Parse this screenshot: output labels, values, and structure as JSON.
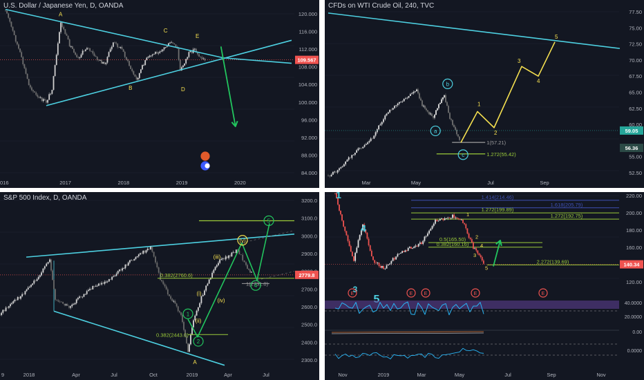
{
  "chart_data": [
    {
      "type": "line",
      "title": "U.S. Dollar / Japanese Yen, D, OANDA",
      "x_ticks": [
        "016",
        "2017",
        "2018",
        "2019",
        "2020"
      ],
      "y_ticks": [
        "120.000",
        "116.000",
        "112.000",
        "108.000",
        "104.000",
        "100.000",
        "96.000",
        "92.000",
        "88.000",
        "84.000"
      ],
      "ylim": [
        84,
        121.5
      ],
      "price_path": [
        [
          2016.0,
          121
        ],
        [
          2016.1,
          117
        ],
        [
          2016.25,
          111
        ],
        [
          2016.4,
          104
        ],
        [
          2016.55,
          101
        ],
        [
          2016.7,
          100
        ],
        [
          2016.8,
          103
        ],
        [
          2016.95,
          118
        ],
        [
          2017.1,
          113
        ],
        [
          2017.25,
          110
        ],
        [
          2017.4,
          112.5
        ],
        [
          2017.55,
          110
        ],
        [
          2017.7,
          108.5
        ],
        [
          2017.85,
          113.5
        ],
        [
          2018.0,
          112
        ],
        [
          2018.15,
          107.5
        ],
        [
          2018.25,
          105
        ],
        [
          2018.4,
          109.5
        ],
        [
          2018.55,
          111
        ],
        [
          2018.7,
          112
        ],
        [
          2018.85,
          113.5
        ],
        [
          2018.95,
          112
        ],
        [
          2019.0,
          107
        ],
        [
          2019.15,
          111
        ],
        [
          2019.25,
          112
        ],
        [
          2019.35,
          110
        ],
        [
          2019.45,
          109.5
        ]
      ],
      "current_price": "109.567",
      "last_label": "109.567",
      "wave_labels": [
        "A",
        "B",
        "C",
        "D",
        "E"
      ],
      "projection": "downward arrow toward 96",
      "colors": {
        "trendline": "#4dd0e1",
        "projection": "#22c55e",
        "labels": "#f5e050",
        "price": "#c8c8c8",
        "last_price": "#ef5350"
      }
    },
    {
      "type": "line",
      "title": "CFDs on WTI Crude Oil, 240, TVC",
      "x_ticks": [
        "Mar",
        "May",
        "Jul",
        "Sep"
      ],
      "y_ticks": [
        "77.50",
        "75.00",
        "72.50",
        "70.00",
        "67.50",
        "65.00",
        "62.50",
        "60.00",
        "55.00",
        "52.50"
      ],
      "ylim": [
        51.5,
        78.5
      ],
      "price_path": [
        [
          0,
          52
        ],
        [
          0.1,
          53
        ],
        [
          0.2,
          55
        ],
        [
          0.3,
          56.5
        ],
        [
          0.4,
          58
        ],
        [
          0.5,
          61
        ],
        [
          0.6,
          63
        ],
        [
          0.7,
          64
        ],
        [
          0.8,
          65.5
        ],
        [
          0.85,
          63
        ],
        [
          0.9,
          62
        ],
        [
          0.95,
          61
        ],
        [
          1.0,
          63
        ],
        [
          1.05,
          64.5
        ],
        [
          1.1,
          61
        ],
        [
          1.15,
          59
        ],
        [
          1.2,
          57.2
        ]
      ],
      "markers": [
        "1(57.21)",
        "1.272(55.42)"
      ],
      "last_labels": [
        "59.05",
        "56.36"
      ],
      "wave_labels": [
        "a",
        "b",
        "c",
        "1",
        "2",
        "3",
        "4",
        "5"
      ],
      "projection_path": [
        [
          1.2,
          57.2
        ],
        [
          1.35,
          62
        ],
        [
          1.5,
          59.5
        ],
        [
          1.75,
          69
        ],
        [
          1.9,
          67.5
        ],
        [
          2.05,
          72.8
        ]
      ],
      "colors": {
        "trendline": "#4dd0e1",
        "projection": "#f5e050",
        "circles": "#4dd0e1",
        "fib": "#9ccc3a"
      }
    },
    {
      "type": "line",
      "title": "S&P 500 Index, D, OANDA",
      "x_ticks": [
        "9",
        "2018",
        "Apr",
        "Jul",
        "Oct",
        "2019",
        "Apr",
        "Jul"
      ],
      "y_ticks": [
        "3200.0",
        "3100.0",
        "3000.0",
        "2900.0",
        "2800.0",
        "2700.0",
        "2600.0",
        "2500.0",
        "2400.0",
        "2300.0"
      ],
      "ylim": [
        2270,
        3220
      ],
      "markers": [
        "0.382(2760.6)",
        "0.382(2443.0)",
        "1(2731.0)"
      ],
      "last_label": "2779.8",
      "wave_labels": [
        "1",
        "2",
        "(i)",
        "(ii)",
        "(iii)",
        "(iv)",
        "(v)",
        "4",
        "5",
        "A"
      ],
      "colors": {
        "trendline": "#4dd0e1",
        "projection": "#22c55e",
        "labels": "#f5e050",
        "fib": "#9ccc3a"
      }
    },
    {
      "type": "line",
      "title": "",
      "x_ticks": [
        "Nov",
        "2019",
        "Mar",
        "May",
        "Jul",
        "Sep",
        "Nov"
      ],
      "y_ticks": [
        "220.00",
        "200.00",
        "180.00",
        "160.00",
        "120.00"
      ],
      "ylim": [
        105,
        225
      ],
      "markers": [
        "1.414(214.46)",
        "1.618(205.79)",
        "1.272(199.89)",
        "1.272(192.75)",
        "0.5(165.50)",
        "0.382(160.16)",
        "2.272(139.69)"
      ],
      "last_label": "140.34",
      "wave_labels": [
        "1",
        "2",
        "3",
        "4",
        "5"
      ],
      "indicator_ticks": [
        "40.0000",
        "20.0000",
        "0.00",
        "0.0000"
      ],
      "event_markers": [
        "E",
        "E",
        "E",
        "E",
        "E",
        "E"
      ],
      "colors": {
        "fib_blue": "#3f51b5",
        "fib_green": "#9ccc3a",
        "projection": "#22c55e",
        "rsi": "#29b6f6",
        "band": "#5c3d8f"
      }
    }
  ]
}
